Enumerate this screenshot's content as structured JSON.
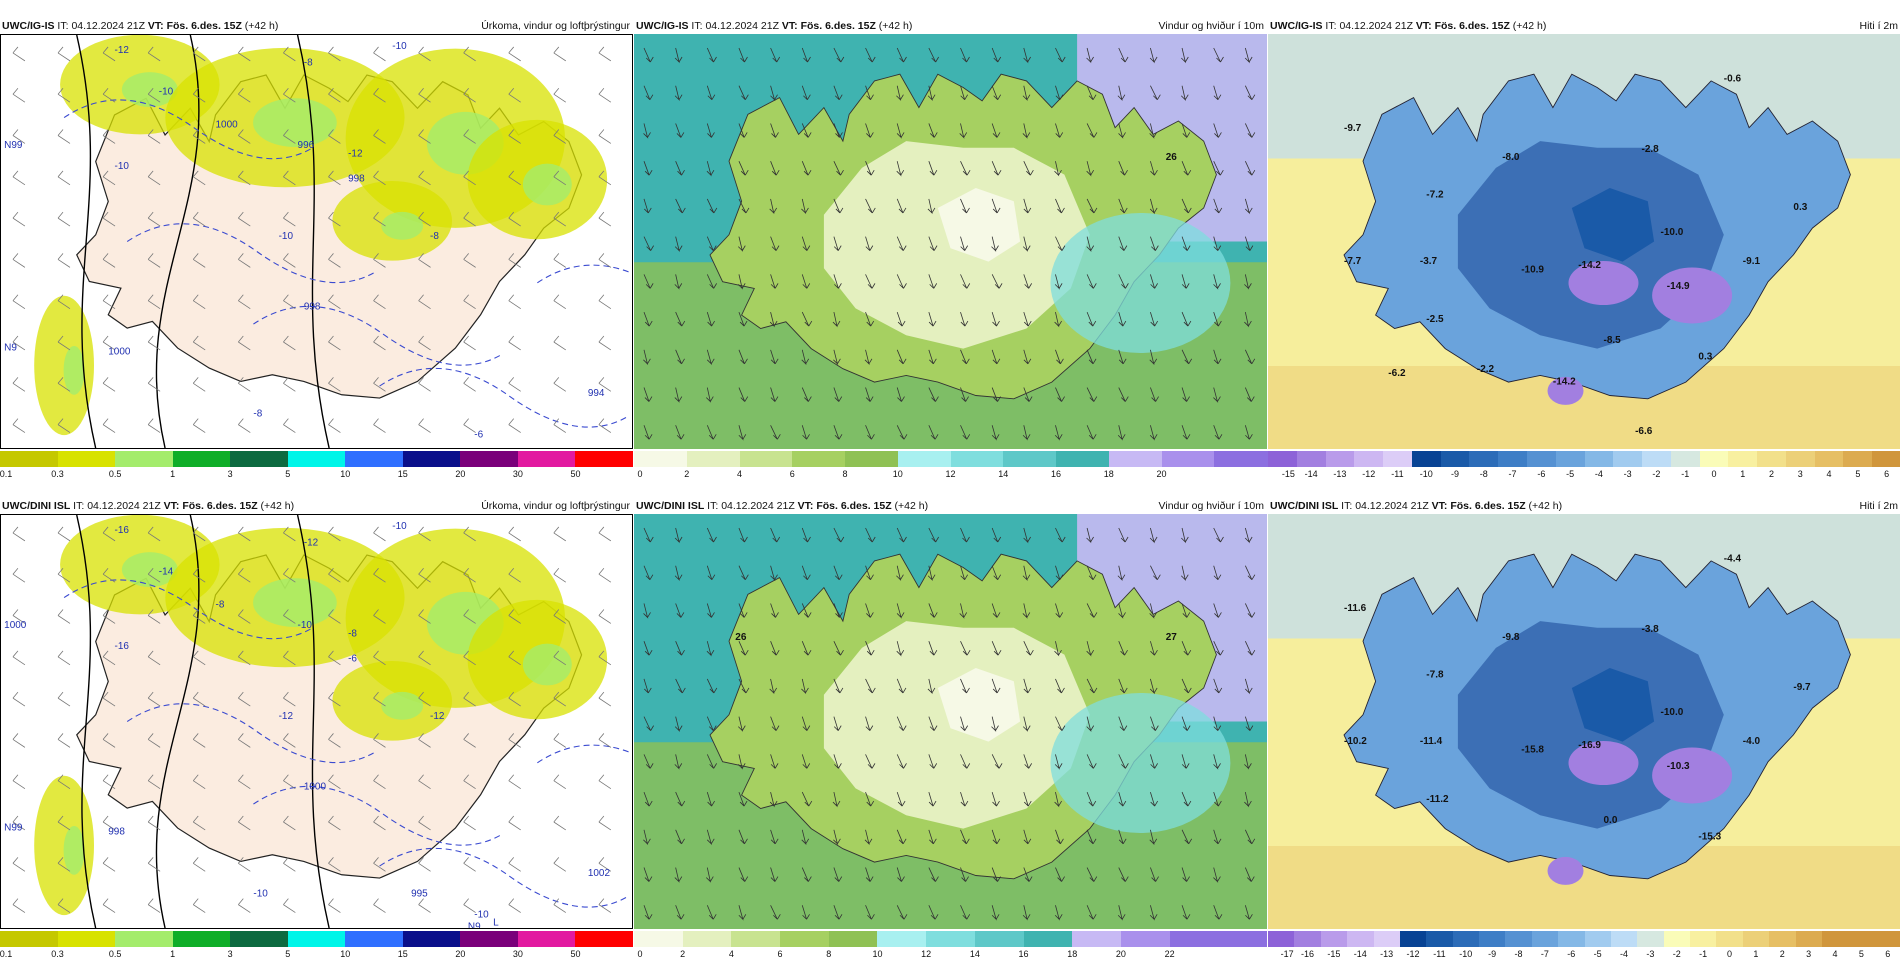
{
  "panels": [
    {
      "model": "UWC/IG-IS",
      "it_label": "IT:",
      "it": "04.12.2024 21Z",
      "vt_label": "VT:",
      "vt": "Fös. 6.des. 15Z",
      "lead": "(+42 h)",
      "title": "Úrkoma, vindur og loftþrýstingur",
      "kind": "precip",
      "labels": [
        "-12",
        "-10",
        "-8",
        "-10",
        "-12",
        "-10",
        "-10",
        "-8",
        "-8",
        "-6",
        "1000",
        "996",
        "998",
        "998",
        "1000",
        "994",
        "N99",
        "N9"
      ],
      "ticks": [
        "0.1",
        "0.3",
        "0.5",
        "1",
        "3",
        "5",
        "10",
        "15",
        "20",
        "30",
        "50"
      ]
    },
    {
      "model": "UWC/IG-IS",
      "it_label": "IT:",
      "it": "04.12.2024 21Z",
      "vt_label": "VT:",
      "vt": "Fös. 6.des. 15Z",
      "lead": "(+42 h)",
      "title": "Vindur og hviður í 10m",
      "kind": "wind",
      "labels": [
        "26"
      ],
      "ticks": [
        "0",
        "2",
        "4",
        "6",
        "8",
        "10",
        "12",
        "14",
        "16",
        "18",
        "20"
      ]
    },
    {
      "model": "UWC/IG-IS",
      "it_label": "IT:",
      "it": "04.12.2024 21Z",
      "vt_label": "VT:",
      "vt": "Fös. 6.des. 15Z",
      "lead": "(+42 h)",
      "title": "Hiti í 2m",
      "kind": "temp",
      "labels": [
        "-0.6",
        "-9.7",
        "-8.0",
        "-2.8",
        "-7.2",
        "0.3",
        "-10.0",
        "-3.7",
        "-7.7",
        "-10.9",
        "-14.2",
        "-14.9",
        "-9.1",
        "-2.5",
        "-8.5",
        "0.3",
        "-6.2",
        "-2.2",
        "-14.2",
        "-6.6"
      ],
      "ticks": [
        "-15",
        "-14",
        "-13",
        "-12",
        "-11",
        "-10",
        "-9",
        "-8",
        "-7",
        "-6",
        "-5",
        "-4",
        "-3",
        "-2",
        "-1",
        "0",
        "1",
        "2",
        "3",
        "4",
        "5",
        "6"
      ]
    },
    {
      "model": "UWC/DINI ISL",
      "it_label": "IT:",
      "it": "04.12.2024 21Z",
      "vt_label": "VT:",
      "vt": "Fös. 6.des. 15Z",
      "lead": "(+42 h)",
      "title": "Úrkoma, vindur og loftþrýstingur",
      "kind": "precip",
      "labels": [
        "-16",
        "-14",
        "-12",
        "-10",
        "-8",
        "-16",
        "-12",
        "-12",
        "-10",
        "-10",
        "-8",
        "-10",
        "-6",
        "1000",
        "998",
        "1002",
        "1000",
        "N99",
        "N9",
        "L",
        "995"
      ],
      "ticks": [
        "0.1",
        "0.3",
        "0.5",
        "1",
        "3",
        "5",
        "10",
        "15",
        "20",
        "30",
        "50"
      ]
    },
    {
      "model": "UWC/DINI ISL",
      "it_label": "IT:",
      "it": "04.12.2024 21Z",
      "vt_label": "VT:",
      "vt": "Fös. 6.des. 15Z",
      "lead": "(+42 h)",
      "title": "Vindur og hviður í 10m",
      "kind": "wind",
      "labels": [
        "27",
        "26"
      ],
      "ticks": [
        "0",
        "2",
        "4",
        "6",
        "8",
        "10",
        "12",
        "14",
        "16",
        "18",
        "20",
        "22"
      ]
    },
    {
      "model": "UWC/DINI ISL",
      "it_label": "IT:",
      "it": "04.12.2024 21Z",
      "vt_label": "VT:",
      "vt": "Fös. 6.des. 15Z",
      "lead": "(+42 h)",
      "title": "Hiti í 2m",
      "kind": "temp",
      "labels": [
        "-4.4",
        "-11.6",
        "-9.8",
        "-3.8",
        "-7.8",
        "-9.7",
        "-10.0",
        "-11.4",
        "-10.2",
        "-15.8",
        "-16.9",
        "-10.3",
        "-4.0",
        "-11.2",
        "0.0",
        "-15.3"
      ],
      "ticks": [
        "-17",
        "-16",
        "-15",
        "-14",
        "-13",
        "-12",
        "-11",
        "-10",
        "-9",
        "-8",
        "-7",
        "-6",
        "-5",
        "-4",
        "-3",
        "-2",
        "-1",
        "0",
        "1",
        "2",
        "3",
        "4",
        "5",
        "6"
      ]
    }
  ],
  "colors": {
    "precip": [
      "#c5c800",
      "#d8e200",
      "#a4ec6c",
      "#0fae28",
      "#0c6a40",
      "#00f5e8",
      "#2f6fff",
      "#0a0f8a",
      "#7a007a",
      "#e21aa0",
      "#ff0000"
    ],
    "wind": [
      "#f6f9e6",
      "#e4f0bf",
      "#c8e390",
      "#a6d061",
      "#8fc154",
      "#a8f0f0",
      "#7fdede",
      "#5ec8c8",
      "#3fb3b0",
      "#c7b9f4",
      "#a990ec",
      "#8c6fe0"
    ],
    "temp": [
      "#8d62d8",
      "#a27fe0",
      "#b99bea",
      "#cdb7f2",
      "#dccdf7",
      "#084394",
      "#1a5aa8",
      "#2c6cb8",
      "#3e7ec6",
      "#5591d2",
      "#6aa3dc",
      "#84b8e6",
      "#a1cbef",
      "#bddcf6",
      "#d6e8e0",
      "#fafcb8",
      "#f8f0a0",
      "#f2e08a",
      "#ecd078",
      "#e6bf64",
      "#dcab50",
      "#d0963c"
    ],
    "land_precip": "#fbece0",
    "land_temp": "#3c6fb5",
    "sea_temp": "#f6ee9c"
  }
}
